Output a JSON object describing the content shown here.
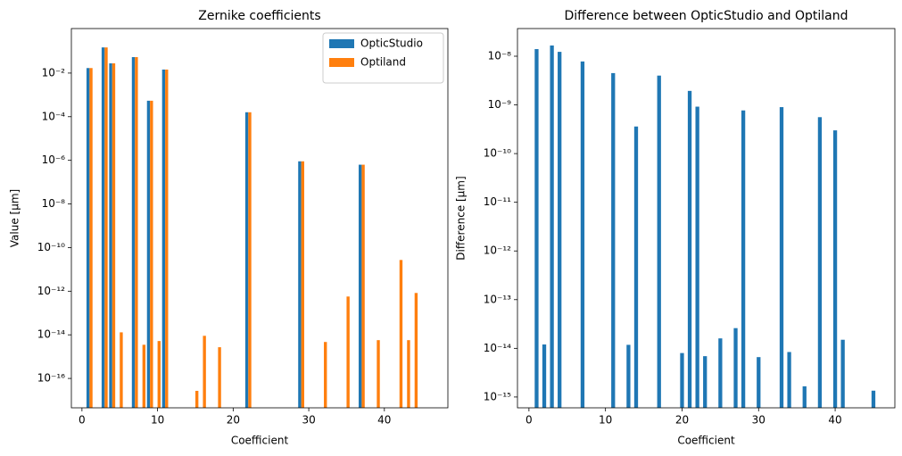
{
  "chart_data": [
    {
      "type": "bar",
      "title": "Zernike coefficients",
      "x_label": "Coefficient",
      "y_label": "Value [µm]",
      "log_y": true,
      "legend": "upper right",
      "xlim": [
        -1.4,
        48.4
      ],
      "ylim": [
        4.5e-18,
        1.1
      ],
      "xticks": [
        0,
        10,
        20,
        30,
        40
      ],
      "yticks": [
        {
          "value": 1e-16,
          "label": "10⁻¹⁶"
        },
        {
          "value": 1e-14,
          "label": "10⁻¹⁴"
        },
        {
          "value": 1e-12,
          "label": "10⁻¹²"
        },
        {
          "value": 1e-10,
          "label": "10⁻¹⁰"
        },
        {
          "value": 1e-08,
          "label": "10⁻⁸"
        },
        {
          "value": 1e-06,
          "label": "10⁻⁶"
        },
        {
          "value": 0.0001,
          "label": "10⁻⁴"
        },
        {
          "value": 0.01,
          "label": "10⁻²"
        }
      ],
      "x": [
        1,
        3,
        4,
        5,
        7,
        8,
        9,
        10,
        11,
        15,
        16,
        18,
        22,
        29,
        32,
        35,
        37,
        39,
        42,
        43,
        44
      ],
      "series": [
        {
          "name": "OpticStudio",
          "color": "#1f77b4",
          "values": [
            0.017,
            0.15,
            0.028,
            null,
            0.054,
            null,
            0.00054,
            null,
            0.0145,
            null,
            null,
            null,
            0.00016,
            9e-07,
            null,
            null,
            6.3e-07,
            null,
            null,
            null,
            null
          ]
        },
        {
          "name": "Optiland",
          "color": "#ff7f0e",
          "values": [
            0.017,
            0.15,
            0.028,
            1.3e-14,
            0.054,
            3.5e-15,
            0.00054,
            5.2e-15,
            0.0145,
            2.7e-17,
            9e-15,
            2.7e-15,
            0.00016,
            9e-07,
            4.7e-15,
            5.7e-13,
            6.3e-07,
            5.7e-15,
            2.7e-11,
            5.7e-15,
            8.3e-13
          ]
        }
      ]
    },
    {
      "type": "bar",
      "title": "Difference between OpticStudio and Optiland",
      "x_label": "Coefficient",
      "y_label": "Difference [µm]",
      "log_y": true,
      "xlim": [
        -1.5,
        47.8
      ],
      "ylim": [
        6e-16,
        3.7e-08
      ],
      "xticks": [
        0,
        10,
        20,
        30,
        40
      ],
      "yticks": [
        {
          "value": 1e-15,
          "label": "10⁻¹⁵"
        },
        {
          "value": 1e-14,
          "label": "10⁻¹⁴"
        },
        {
          "value": 1e-13,
          "label": "10⁻¹³"
        },
        {
          "value": 1e-12,
          "label": "10⁻¹²"
        },
        {
          "value": 1e-11,
          "label": "10⁻¹¹"
        },
        {
          "value": 1e-10,
          "label": "10⁻¹⁰"
        },
        {
          "value": 1e-09,
          "label": "10⁻⁹"
        },
        {
          "value": 1e-08,
          "label": "10⁻⁸"
        }
      ],
      "x": [
        1,
        2,
        3,
        4,
        7,
        11,
        13,
        14,
        17,
        20,
        21,
        22,
        23,
        25,
        27,
        28,
        30,
        33,
        34,
        36,
        38,
        40,
        41,
        45
      ],
      "series": [
        {
          "color": "#1f77b4",
          "values": [
            1.4e-08,
            1.2e-14,
            1.66e-08,
            1.23e-08,
            7.8e-09,
            4.5e-09,
            1.18e-14,
            3.6e-10,
            4e-09,
            8e-15,
            1.94e-09,
            9.2e-10,
            6.9e-15,
            1.6e-14,
            2.6e-14,
            7.7e-10,
            6.6e-15,
            9e-10,
            8.4e-15,
            1.66e-15,
            5.6e-10,
            3e-10,
            1.5e-14,
            1.35e-15
          ]
        }
      ]
    }
  ]
}
